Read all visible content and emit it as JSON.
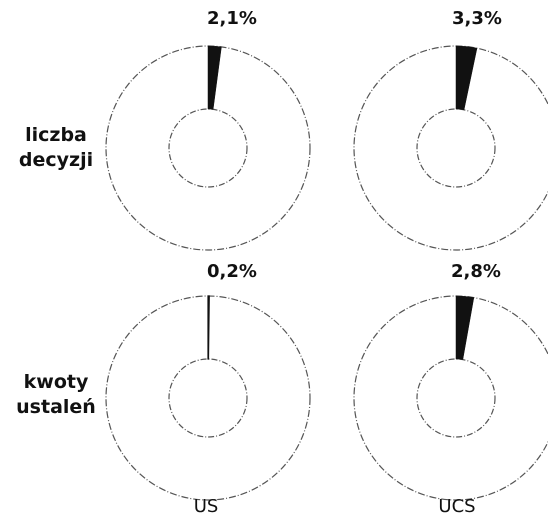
{
  "chart_data": {
    "type": "pie",
    "subtype": "donut",
    "row_labels": [
      [
        "liczba",
        "decyzji"
      ],
      [
        "kwoty",
        "ustaleń"
      ]
    ],
    "column_labels": [
      "US",
      "UCS"
    ],
    "cells": [
      {
        "row": 0,
        "col": 0,
        "value": 2.1,
        "label": "2,1%"
      },
      {
        "row": 0,
        "col": 1,
        "value": 3.3,
        "label": "3,3%"
      },
      {
        "row": 1,
        "col": 0,
        "value": 0.2,
        "label": "0,2%"
      },
      {
        "row": 1,
        "col": 1,
        "value": 2.8,
        "label": "2,8%"
      }
    ],
    "colors": {
      "slice": "#111111",
      "ring_stroke": "#555555",
      "background": "#ffffff"
    }
  }
}
